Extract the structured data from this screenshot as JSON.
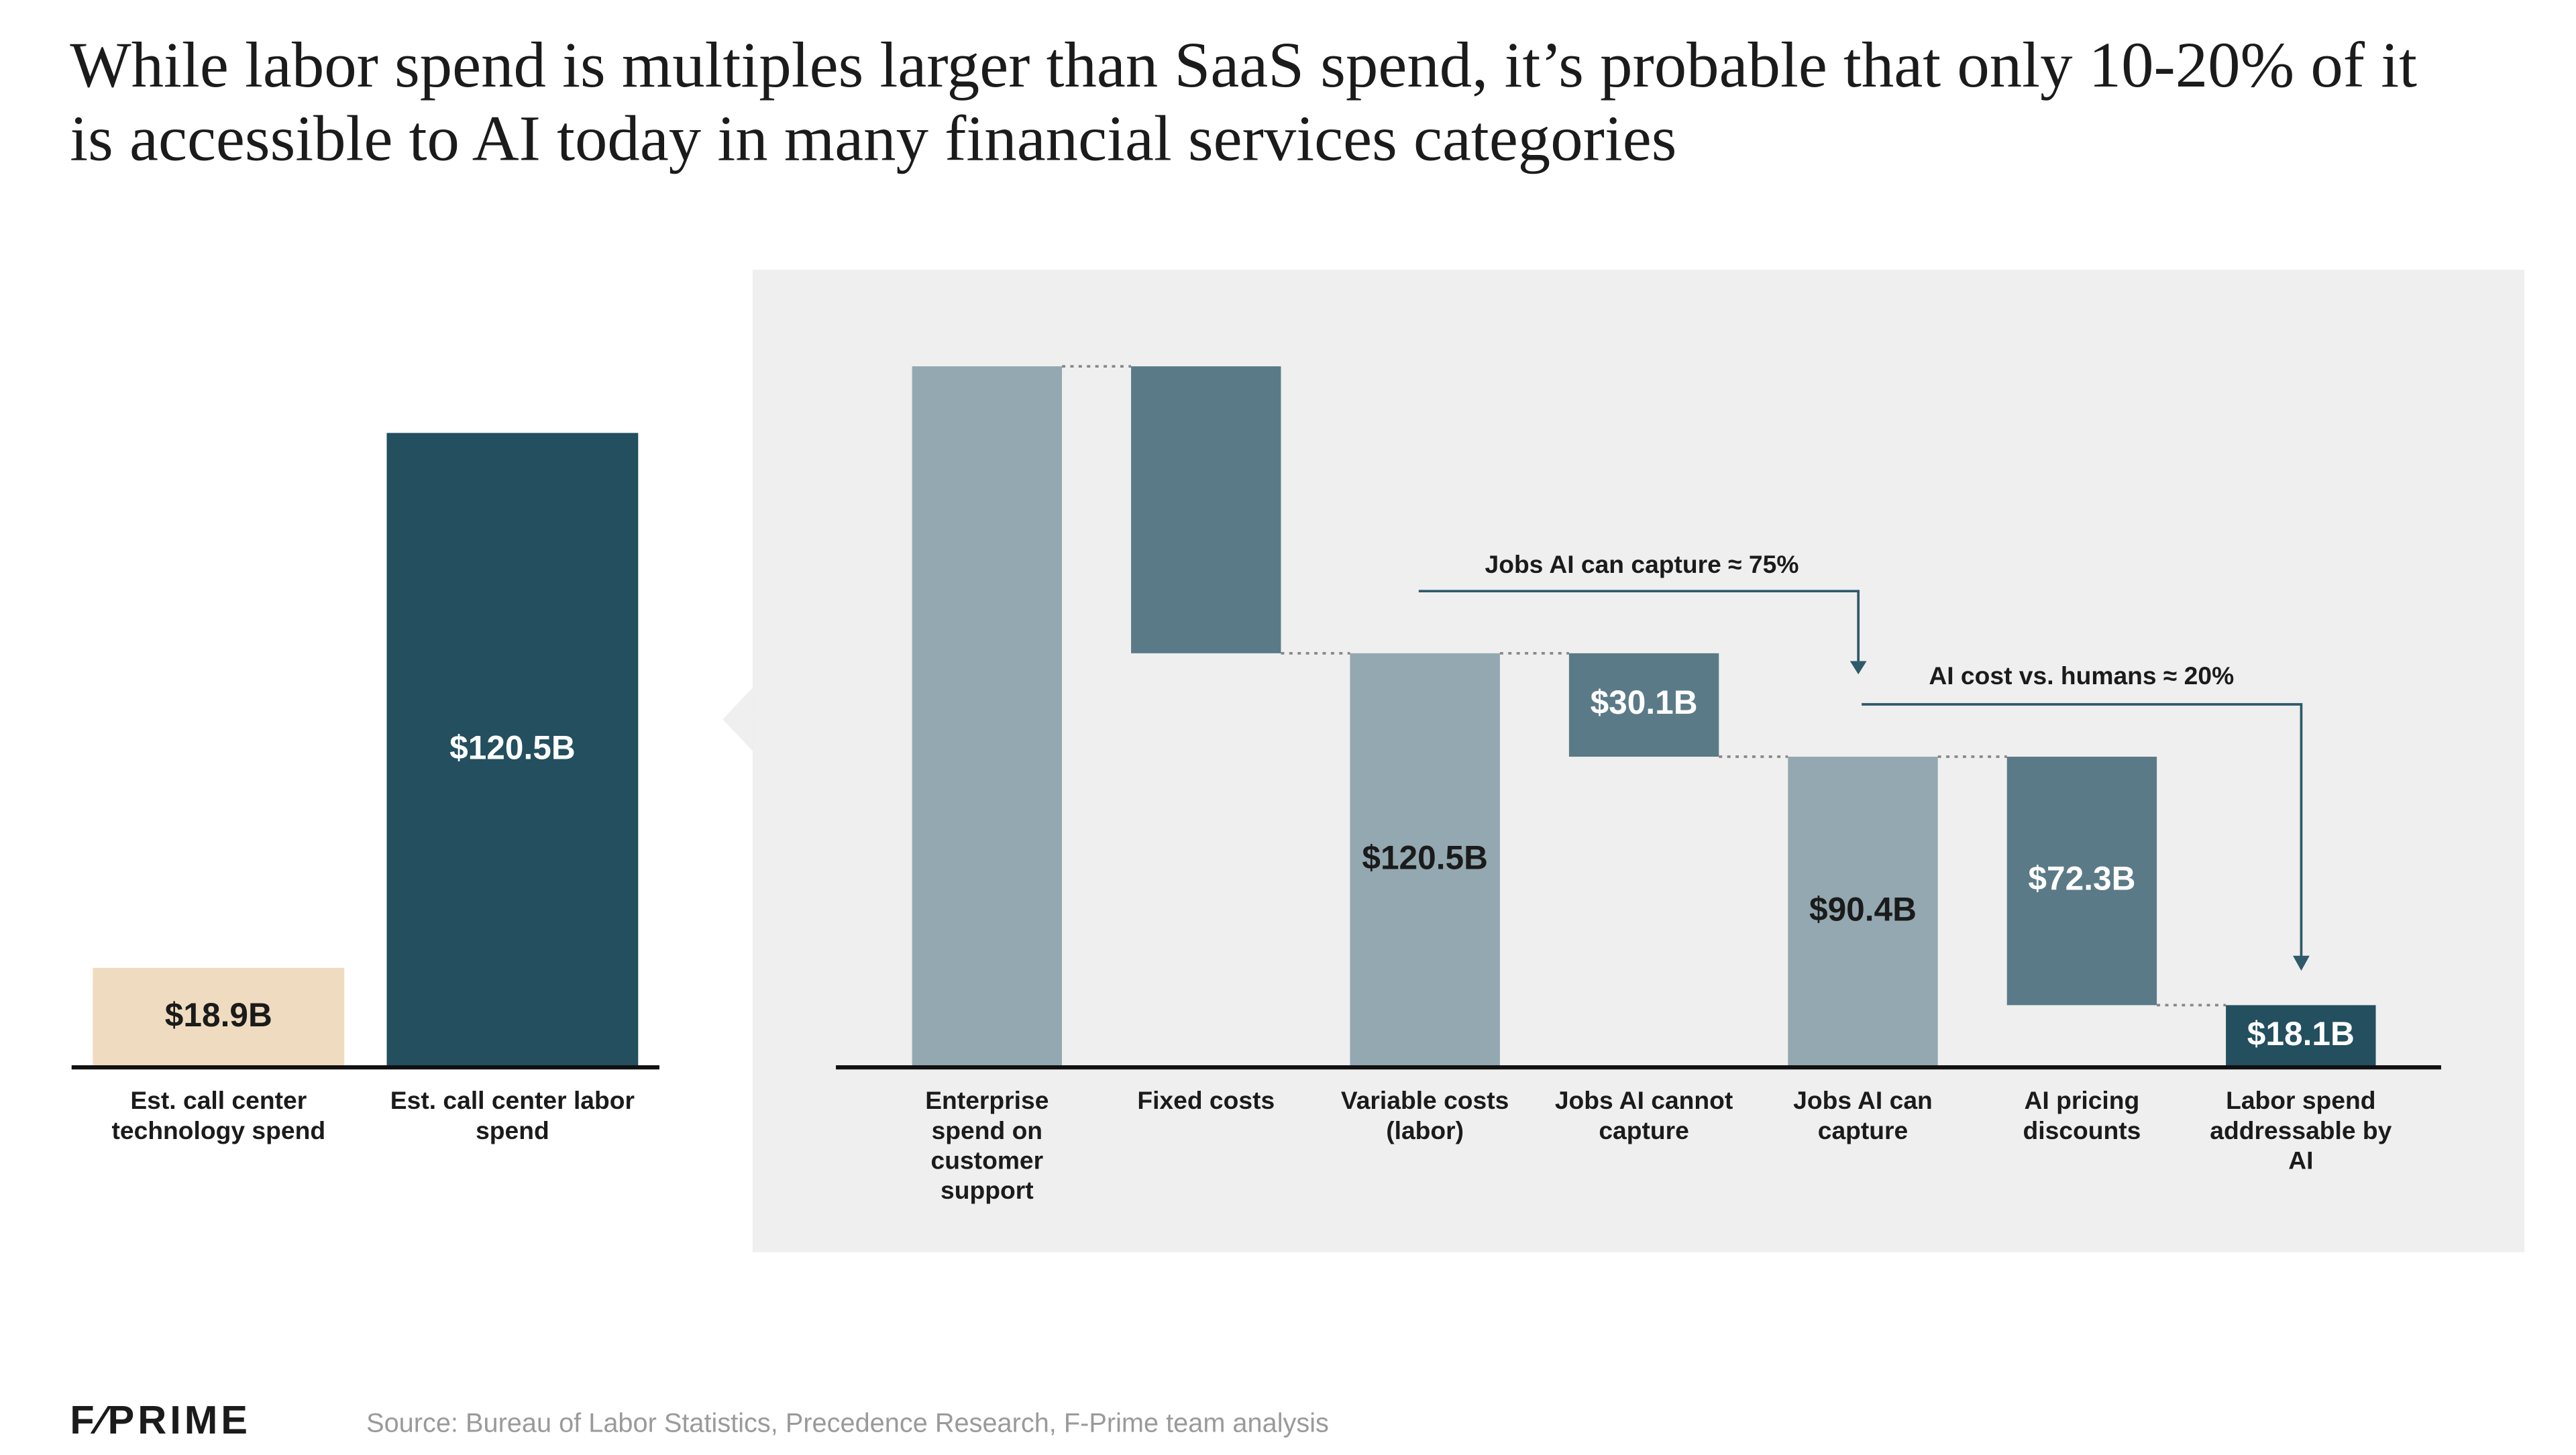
{
  "title": "While labor spend is multiples larger than SaaS spend, it’s probable that only 10-20% of it is accessible to AI today in many financial services categories",
  "logo": "F⁄PRIME",
  "source": "Source: Bureau of Labor Statistics, Precedence Research, F-Prime team analysis",
  "chart_data": [
    {
      "type": "bar",
      "categories": [
        "Est. call center technology spend",
        "Est. call center labor spend"
      ],
      "values": [
        18.9,
        120.5
      ],
      "value_labels": [
        "$18.9B",
        "$120.5B"
      ],
      "colors": [
        "#efdcc0",
        "#234f5f"
      ]
    },
    {
      "type": "waterfall",
      "categories": [
        "Enterprise spend on customer support",
        "Fixed costs",
        "Variable costs (labor)",
        "Jobs AI cannot capture",
        "Jobs AI can capture",
        "AI pricing discounts",
        "Labor spend addressable by AI"
      ],
      "values": [
        204,
        83.5,
        120.5,
        30.1,
        90.4,
        72.3,
        18.1
      ],
      "value_labels": [
        null,
        null,
        "$120.5B",
        "$30.1B",
        "$90.4B",
        "$72.3B",
        "$18.1B"
      ],
      "measures": [
        "total",
        "decrease",
        "total",
        "decrease",
        "total",
        "decrease",
        "total"
      ],
      "colors": [
        "#93a8b0",
        "#5a7a87",
        "#93a8b0",
        "#5a7a87",
        "#93a8b0",
        "#5a7a87",
        "#234f5f"
      ],
      "annotations": [
        "Jobs AI can capture ≈ 75%",
        "AI cost vs. humans ≈ 20%"
      ]
    }
  ]
}
